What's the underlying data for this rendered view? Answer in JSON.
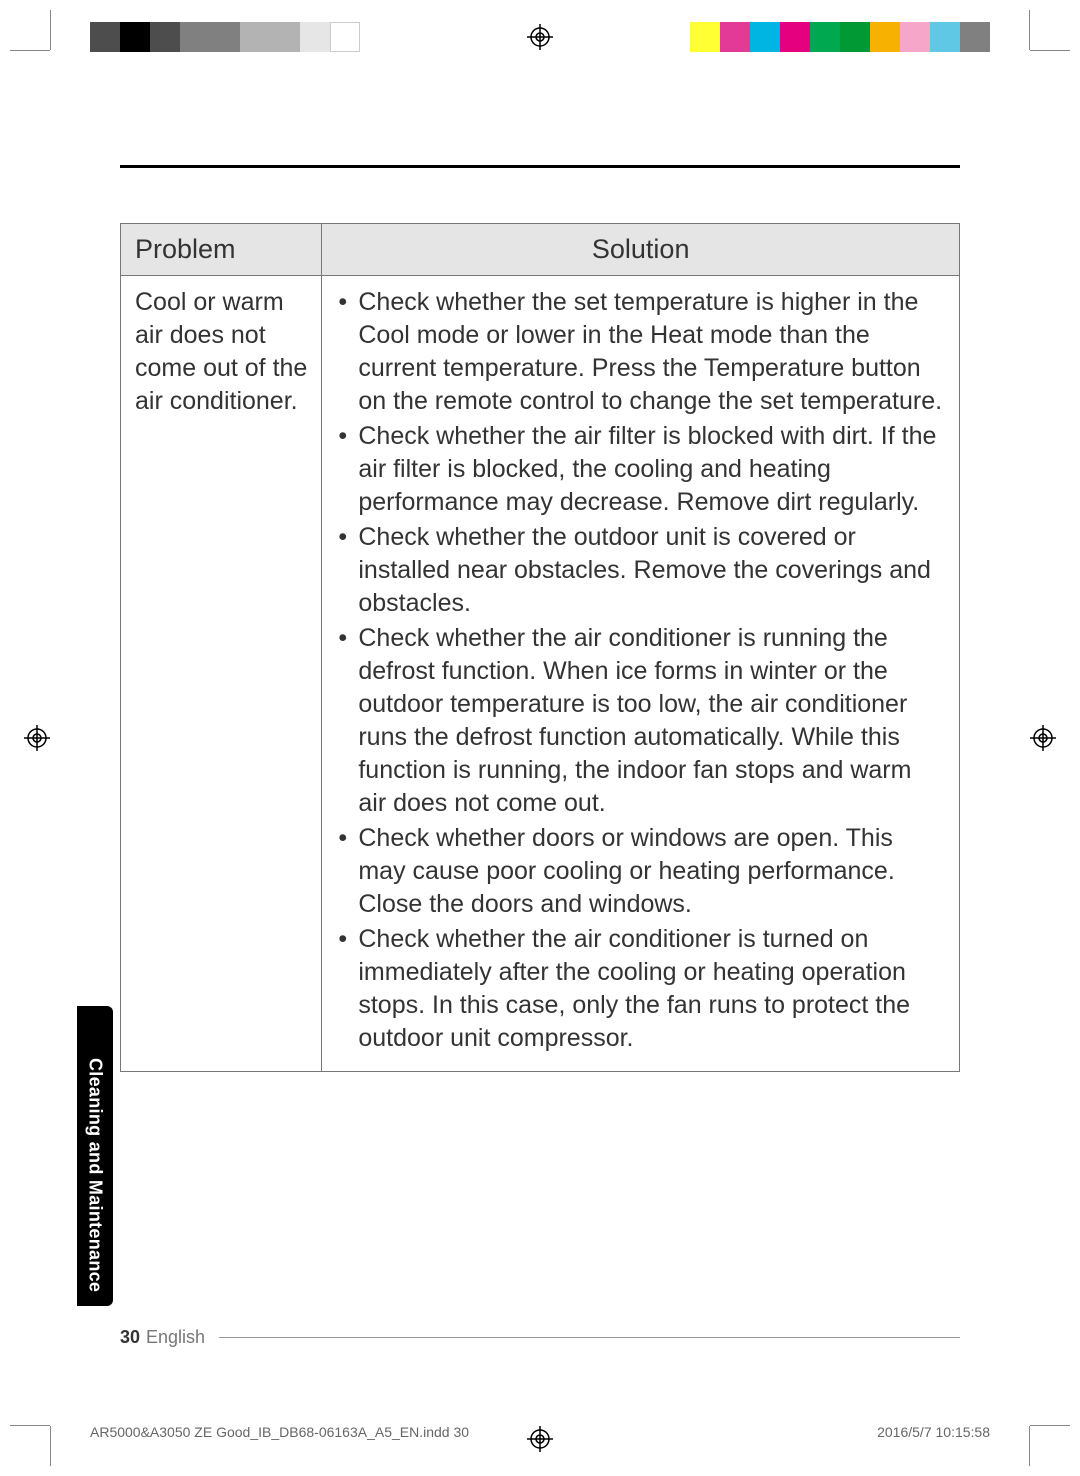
{
  "colorbar_left": [
    "#4d4d4d",
    "#000000",
    "#4d4d4d",
    "#808080",
    "#808080",
    "#b3b3b3",
    "#b3b3b3",
    "#e6e6e6",
    "#ffffff"
  ],
  "colorbar_right": [
    "#ffff33",
    "#e23a96",
    "#00b5e2",
    "#e4007f",
    "#00a94f",
    "#009933",
    "#f7b100",
    "#f6a6c9",
    "#5ec8e5",
    "#808080"
  ],
  "table": {
    "headers": {
      "problem": "Problem",
      "solution": "Solution"
    },
    "row": {
      "problem": "Cool or warm air does not come out of the air conditioner.",
      "solutions": [
        "Check whether the set temperature is higher in the Cool mode or lower in the Heat mode than the current temperature. Press the Temperature button on the remote control to change the set temperature.",
        "Check whether the air filter is blocked with dirt. If the air filter is blocked, the cooling and heating performance may decrease. Remove dirt regularly.",
        "Check whether the outdoor unit is covered or installed near obstacles. Remove the coverings and obstacles.",
        "Check whether the air conditioner is running the defrost function. When ice forms in winter or the outdoor temperature is too low, the air conditioner runs the defrost function automatically. While this function is running, the indoor fan stops and warm air does not come out.",
        "Check whether doors or windows are open. This may cause poor cooling or heating performance. Close the doors and windows.",
        "Check whether the air conditioner is turned on immediately after the cooling or heating operation stops. In this case, only the fan runs to protect the outdoor unit compressor."
      ]
    }
  },
  "side_tab": "Cleaning and Maintenance",
  "footer": {
    "page": "30",
    "lang": "English"
  },
  "slug": {
    "file": "AR5000&A3050 ZE Good_IB_DB68-06163A_A5_EN.indd   30",
    "time": "2016/5/7   10:15:58"
  },
  "colors": {
    "border": "#777777",
    "header_bg": "#e5e5e5",
    "text": "#333333",
    "tab_bg": "#000000",
    "tab_fg": "#ffffff"
  },
  "typography": {
    "header_fontsize_pt": 20,
    "body_fontsize_pt": 19,
    "tab_fontsize_pt": 13,
    "footer_fontsize_pt": 13,
    "slug_fontsize_pt": 10
  }
}
